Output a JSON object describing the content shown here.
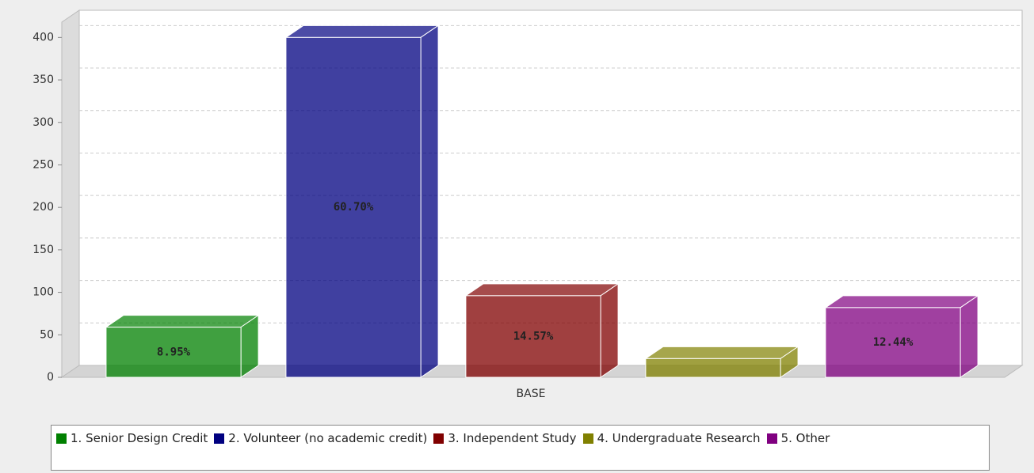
{
  "chart_data": {
    "type": "bar3d",
    "categories": [
      "BASE"
    ],
    "series": [
      {
        "name": "1. Senior Design Credit",
        "color": "#008000",
        "values": [
          59
        ],
        "value_labels": [
          "8.95%"
        ]
      },
      {
        "name": "2. Volunteer (no academic credit)",
        "color": "#000080",
        "values": [
          400
        ],
        "value_labels": [
          "60.70%"
        ]
      },
      {
        "name": "3. Independent Study",
        "color": "#800000",
        "values": [
          96
        ],
        "value_labels": [
          "14.57%"
        ]
      },
      {
        "name": "4. Undergraduate Research",
        "color": "#808000",
        "values": [
          22
        ]
      },
      {
        "name": "5. Other",
        "color": "#800080",
        "values": [
          82
        ],
        "value_labels": [
          "12.44%"
        ]
      }
    ],
    "ylim": [
      0,
      418
    ],
    "yticks": [
      0,
      50,
      100,
      150,
      200,
      250,
      300,
      350,
      400
    ],
    "grid": true,
    "legend": "bottom"
  }
}
